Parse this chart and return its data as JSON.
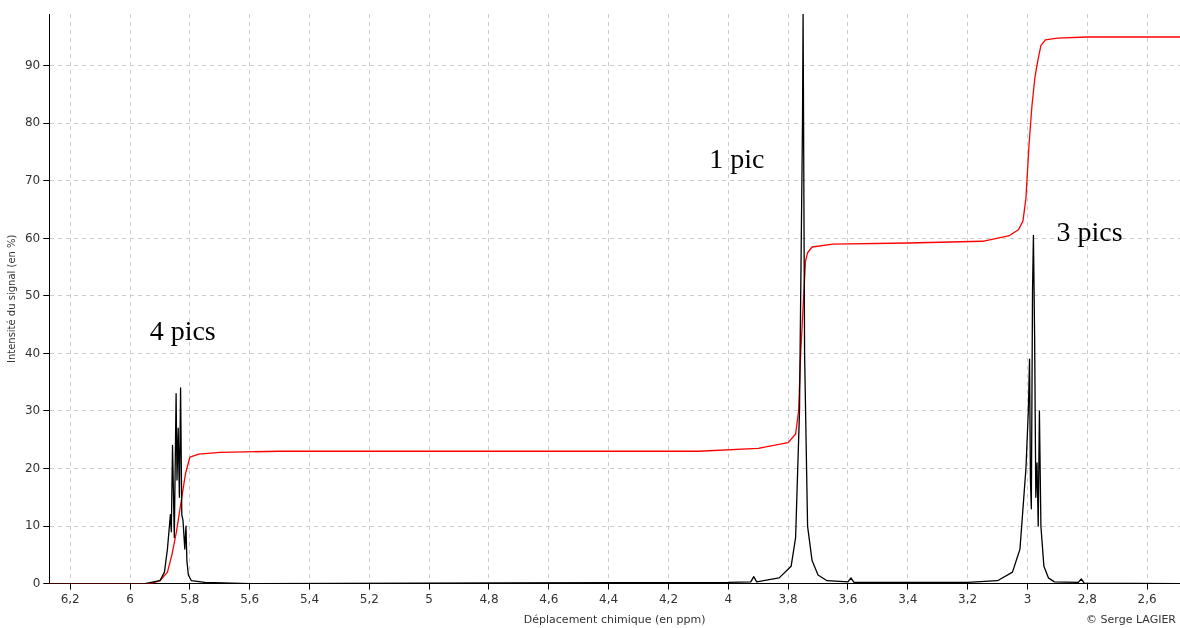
{
  "chart_data": {
    "type": "line",
    "xlabel": "Déplacement chimique (en ppm)",
    "ylabel": "Intensité du signal (en %)",
    "xlim": [
      6.27,
      2.49
    ],
    "ylim": [
      0,
      99
    ],
    "xticks": [
      {
        "value": 6.2,
        "label": "6,2"
      },
      6,
      {
        "value": 5.8,
        "label": "5,8"
      },
      {
        "value": 5.6,
        "label": "5,6"
      },
      {
        "value": 5.4,
        "label": "5,4"
      },
      {
        "value": 5.2,
        "label": "5,2"
      },
      5,
      {
        "value": 4.8,
        "label": "4,8"
      },
      {
        "value": 4.6,
        "label": "4,6"
      },
      {
        "value": 4.4,
        "label": "4,4"
      },
      {
        "value": 4.2,
        "label": "4,2"
      },
      4,
      {
        "value": 3.8,
        "label": "3,8"
      },
      {
        "value": 3.6,
        "label": "3,6"
      },
      {
        "value": 3.4,
        "label": "3,4"
      },
      {
        "value": 3.2,
        "label": "3,2"
      },
      3,
      {
        "value": 2.8,
        "label": "2,8"
      },
      {
        "value": 2.6,
        "label": "2,6"
      }
    ],
    "yticks": [
      0,
      10,
      20,
      30,
      40,
      50,
      60,
      70,
      80,
      90
    ],
    "grid": true,
    "legend": false,
    "marker": "none",
    "series": [
      {
        "color": "#000000",
        "x": [
          6.27,
          5.95,
          5.9,
          5.885,
          5.875,
          5.865,
          5.862,
          5.858,
          5.852,
          5.846,
          5.843,
          5.839,
          5.835,
          5.831,
          5.827,
          5.823,
          5.817,
          5.813,
          5.81,
          5.805,
          5.795,
          5.75,
          5.6,
          4.0,
          3.925,
          3.915,
          3.905,
          3.83,
          3.79,
          3.775,
          3.762,
          3.752,
          3.75,
          3.745,
          3.735,
          3.72,
          3.7,
          3.67,
          3.6,
          3.59,
          3.58,
          3.2,
          3.1,
          3.05,
          3.025,
          3.005,
          2.997,
          2.993,
          2.99,
          2.987,
          2.983,
          2.98,
          2.976,
          2.972,
          2.968,
          2.964,
          2.96,
          2.955,
          2.945,
          2.93,
          2.91,
          2.83,
          2.82,
          2.81,
          2.49
        ],
        "values": [
          0,
          0,
          0.5,
          2,
          6,
          12,
          9,
          24,
          8,
          33,
          18,
          27,
          15,
          34,
          12,
          11,
          6,
          10,
          4,
          1.5,
          0.5,
          0.2,
          0,
          0.2,
          0.3,
          1.2,
          0.3,
          1,
          3,
          8,
          30,
          80,
          99,
          40,
          10,
          4,
          1.5,
          0.5,
          0.3,
          1,
          0.2,
          0.2,
          0.5,
          2,
          6,
          20,
          30,
          39,
          18,
          13,
          51,
          60.5,
          43,
          15,
          21,
          10,
          30,
          10,
          3,
          1,
          0.3,
          0.2,
          0.8,
          0.1,
          0
        ]
      },
      {
        "color": "#ff0000",
        "x": [
          6.27,
          5.93,
          5.9,
          5.875,
          5.86,
          5.845,
          5.83,
          5.815,
          5.8,
          5.77,
          5.7,
          5.5,
          4.1,
          3.9,
          3.8,
          3.775,
          3.765,
          3.758,
          3.75,
          3.742,
          3.735,
          3.72,
          3.65,
          3.4,
          3.15,
          3.06,
          3.03,
          3.015,
          3.005,
          2.995,
          2.985,
          2.975,
          2.965,
          2.955,
          2.94,
          2.9,
          2.8,
          2.49
        ],
        "values": [
          0,
          0,
          0.5,
          2,
          5,
          9,
          14,
          19,
          22,
          22.5,
          22.8,
          23,
          23,
          23.5,
          24.5,
          26,
          30,
          40,
          null,
          56,
          57.5,
          58.5,
          59,
          59.2,
          59.5,
          60.5,
          61.5,
          63,
          67,
          76,
          83,
          88,
          91,
          93.5,
          94.5,
          94.8,
          95,
          95
        ]
      }
    ],
    "annotations": [
      "4 pics",
      "1 pic",
      "3 pics",
      "© Serge LAGIER"
    ]
  }
}
